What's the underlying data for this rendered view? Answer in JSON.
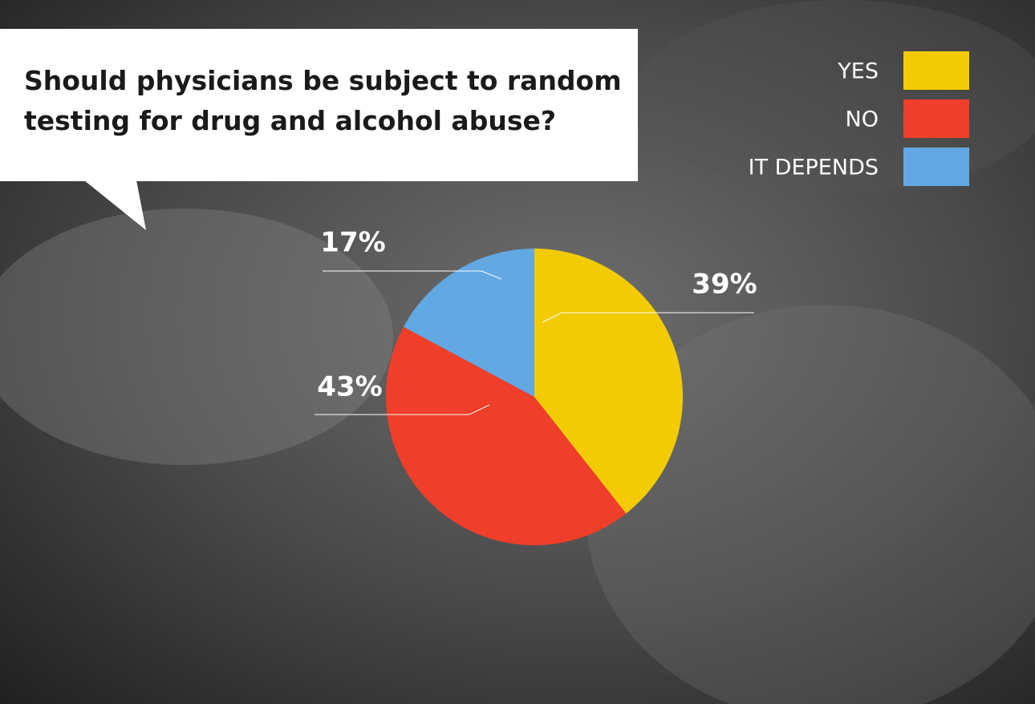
{
  "chart_data": {
    "type": "pie",
    "title": "Should physicians be subject to random testing for drug and alcohol abuse?",
    "categories": [
      "YES",
      "NO",
      "IT DEPENDS"
    ],
    "values": [
      39,
      43,
      17
    ],
    "value_labels": [
      "39%",
      "43%",
      "17%"
    ],
    "colors": [
      "#f2cb05",
      "#ef3e2a",
      "#62a8e2"
    ],
    "legend": "top-right"
  }
}
